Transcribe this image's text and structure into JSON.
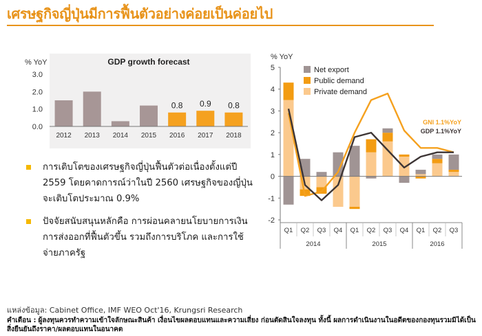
{
  "page": {
    "title": "เศรษฐกิจญี่ปุ่นมีการฟื้นตัวอย่างค่อยเป็นค่อยไป",
    "bullets": [
      "การเติบโตของเศรษฐกิจญี่ปุ่นฟื้นตัวต่อเนื่องตั้งแต่ปี 2559 โดยคาดการณ์ว่าในปี 2560 เศรษฐกิจของญี่ปุ่นจะเติบโตประมาณ 0.9%",
      "ปัจจัยสนับสนุนหลักคือ การผ่อนคลายนโยบายการเงิน การส่งออกที่ฟื้นตัวขึ้น รวมถึงการบริโภค และการใช้จ่ายภาครัฐ"
    ],
    "source": "แหล่งข้อมูล: Cabinet Office, IMF WEO Oct'16, Krungsri Research",
    "disclaimer_label": "คำเตือน :",
    "disclaimer": "ผู้ลงทุนควรทำความเข้าใจลักษณะสินค้า เงื่อนไขผลตอบแทนและความเสี่ยง ก่อนตัดสินใจลงทุน ทั้งนี้ ผลการดำเนินงานในอดีตของกองทุนรวมมิได้เป็นสิ่งยืนยันถึงราคา/ผลตอบแทนในอนาคต",
    "colors": {
      "accent": "#e8931a",
      "past_bar": "#a79696",
      "forecast_bar": "#f5a11f",
      "private": "#fbc98d",
      "public": "#f39c12",
      "net_export": "#a09494",
      "gni": "#f5a11f",
      "gdp": "#3d3535"
    }
  },
  "chart_data": [
    {
      "type": "bar",
      "title": "GDP growth forecast",
      "ylabel": "% YoY",
      "categories": [
        "2012",
        "2013",
        "2014",
        "2015",
        "2016",
        "2017",
        "2018"
      ],
      "values": [
        1.5,
        2.0,
        0.3,
        1.2,
        0.8,
        0.9,
        0.8
      ],
      "forecast_from_index": 4,
      "data_labels": [
        "",
        "",
        "",
        "",
        "0.8",
        "0.9",
        "0.8"
      ],
      "ylim": [
        0,
        3
      ],
      "yticks": [
        "0.0",
        "1.0",
        "2.0",
        "3.0"
      ],
      "grid": false
    },
    {
      "type": "bar",
      "ylabel": "% YoY",
      "categories": [
        "Q1",
        "Q2",
        "Q3",
        "Q4",
        "Q1",
        "Q2",
        "Q3",
        "Q4",
        "Q1",
        "Q2",
        "Q3"
      ],
      "year_groups": [
        {
          "label": "2014",
          "start": 0,
          "end": 3
        },
        {
          "label": "2015",
          "start": 4,
          "end": 7
        },
        {
          "label": "2016",
          "start": 8,
          "end": 10
        }
      ],
      "ylim": [
        -2,
        5
      ],
      "yticks": [
        "-2",
        "-1",
        "0",
        "1",
        "2",
        "3",
        "4",
        "5"
      ],
      "legend_position": "top-left",
      "series": [
        {
          "name": "Private demand",
          "kind": "stacked-bar",
          "values": [
            3.5,
            -0.6,
            -0.5,
            -1.4,
            -1.4,
            1.1,
            1.6,
            0.9,
            0.1,
            0.6,
            0.2
          ]
        },
        {
          "name": "Public demand",
          "kind": "stacked-bar",
          "values": [
            0.8,
            -0.3,
            -0.3,
            0.0,
            -0.1,
            0.6,
            0.4,
            0.1,
            -0.1,
            0.2,
            0.1
          ]
        },
        {
          "name": "Net export",
          "kind": "stacked-bar",
          "values": [
            -1.3,
            0.8,
            0.2,
            1.1,
            1.4,
            -0.1,
            0.2,
            -0.3,
            0.2,
            0.2,
            0.7
          ]
        },
        {
          "name": "GNI",
          "kind": "line",
          "label": "GNI 1.1%YoY",
          "values": [
            2.9,
            -0.9,
            -0.7,
            0.2,
            2.0,
            3.5,
            3.8,
            2.1,
            1.3,
            1.3,
            1.1
          ]
        },
        {
          "name": "GDP",
          "kind": "line",
          "label": "GDP 1.1%YoY",
          "values": [
            3.1,
            -0.4,
            -1.1,
            -0.4,
            1.8,
            2.0,
            1.2,
            0.4,
            0.9,
            1.1,
            1.1
          ]
        }
      ]
    }
  ]
}
